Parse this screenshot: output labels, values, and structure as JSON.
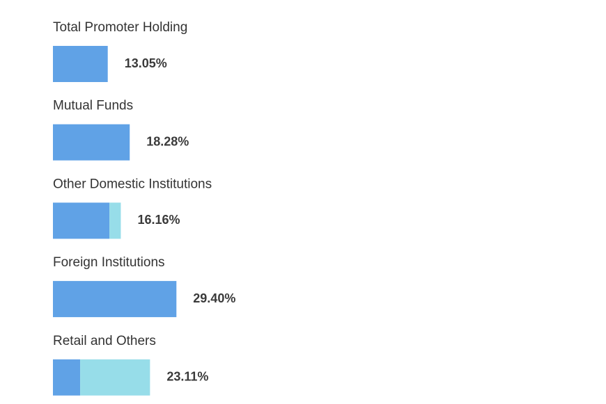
{
  "chart_data": {
    "type": "stacked-bar",
    "categories": [
      "Total Promoter Holding",
      "Mutual Funds",
      "Other Domestic Institutions",
      "Foreign Institutions",
      "Retail and Others"
    ],
    "series": [
      {
        "color": "#60a2e6",
        "values": [
          13.05,
          18.28,
          13.45,
          29.4,
          6.48
        ]
      },
      {
        "color": "#97dde9",
        "values": [
          0,
          0,
          2.71,
          0,
          16.63
        ]
      }
    ],
    "values": [
      13.05,
      18.28,
      16.16,
      29.4,
      23.11
    ],
    "value_labels": [
      "13.05%",
      "18.28%",
      "16.16%",
      "29.40%",
      "23.11%"
    ]
  }
}
